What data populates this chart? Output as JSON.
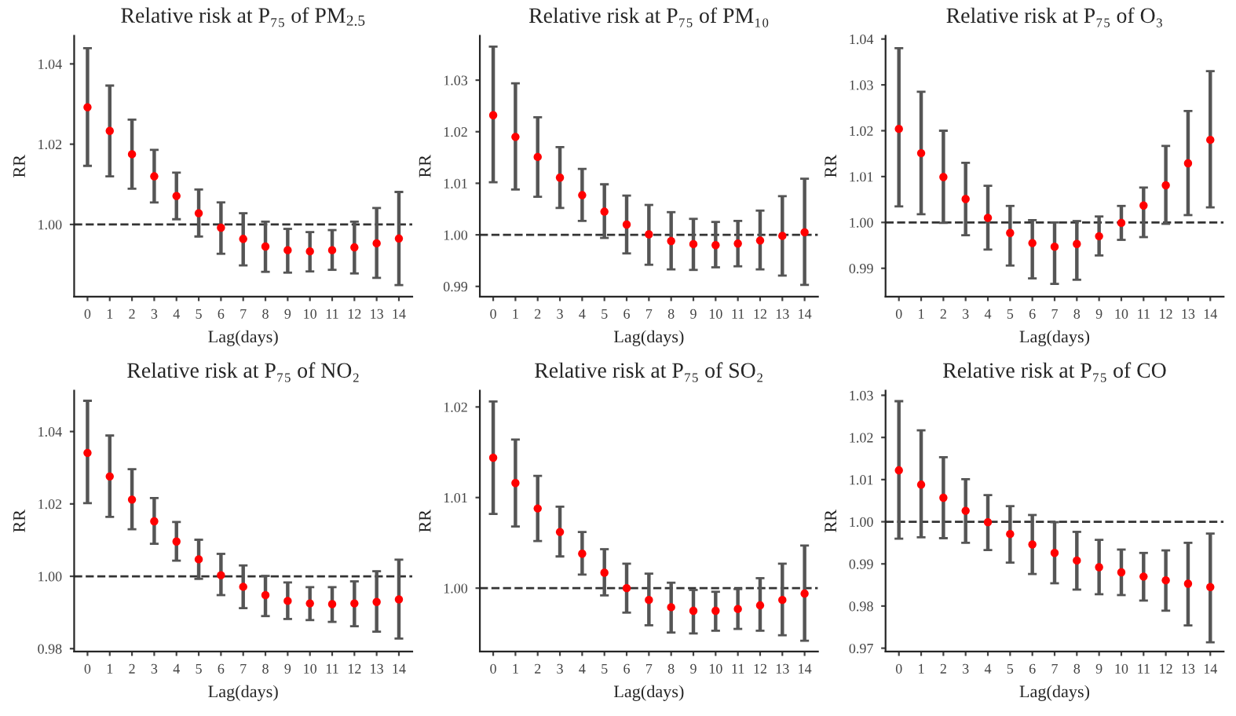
{
  "chart_data": [
    {
      "type": "scatter",
      "title": "Relative risk at P₇₅ of PM$_{2.5}$",
      "xlabel": "Lag(days)",
      "ylabel": "RR",
      "categories": [
        "0",
        "1",
        "2",
        "3",
        "4",
        "5",
        "6",
        "7",
        "8",
        "9",
        "10",
        "11",
        "12",
        "13",
        "14"
      ],
      "color": "#ff0000",
      "marker": "circle",
      "grid": false,
      "values": [
        1.0292,
        1.0233,
        1.0175,
        1.012,
        1.0071,
        1.0028,
        0.9992,
        0.9964,
        0.9945,
        0.9936,
        0.9933,
        0.9936,
        0.9943,
        0.9953,
        0.9965
      ],
      "errors": [
        [
          1.0146,
          1.0439
        ],
        [
          1.012,
          1.0346
        ],
        [
          1.0089,
          1.0261
        ],
        [
          1.0055,
          1.0186
        ],
        [
          1.0013,
          1.0129
        ],
        [
          0.997,
          1.0087
        ],
        [
          0.9927,
          1.0055
        ],
        [
          0.9898,
          1.0028
        ],
        [
          0.9882,
          1.0007
        ],
        [
          0.988,
          0.9989
        ],
        [
          0.9883,
          0.9981
        ],
        [
          0.9887,
          0.9986
        ],
        [
          0.9878,
          1.0007
        ],
        [
          0.9867,
          1.0041
        ],
        [
          0.9849,
          1.0081
        ]
      ],
      "ylim": [
        0.982,
        1.047
      ],
      "yticks": [
        {
          "value": 1.0,
          "label": "1.00"
        },
        {
          "value": 1.02,
          "label": "1.02"
        },
        {
          "value": 1.04,
          "label": "1.04"
        }
      ],
      "ref_lines": [
        {
          "axis": "y",
          "value": 1.0,
          "color": "#333333",
          "line_style": "dashed"
        }
      ]
    },
    {
      "type": "scatter",
      "title": "Relative risk at P₇₅ of PM₁₀",
      "xlabel": "Lag(days)",
      "ylabel": "RR",
      "categories": [
        "0",
        "1",
        "2",
        "3",
        "4",
        "5",
        "6",
        "7",
        "8",
        "9",
        "10",
        "11",
        "12",
        "13",
        "14"
      ],
      "color": "#ff0000",
      "marker": "circle",
      "grid": false,
      "values": [
        1.0232,
        1.019,
        1.0151,
        1.0111,
        1.0077,
        1.0045,
        1.002,
        1.0001,
        0.9988,
        0.9982,
        0.998,
        0.9983,
        0.9989,
        0.9998,
        1.0005
      ],
      "errors": [
        [
          1.0102,
          1.0365
        ],
        [
          1.0088,
          1.0294
        ],
        [
          1.0074,
          1.0228
        ],
        [
          1.0052,
          1.017
        ],
        [
          1.0027,
          1.0128
        ],
        [
          0.9994,
          1.0098
        ],
        [
          0.9964,
          1.0076
        ],
        [
          0.9942,
          1.0058
        ],
        [
          0.9933,
          1.0044
        ],
        [
          0.9932,
          1.0031
        ],
        [
          0.9937,
          1.0025
        ],
        [
          0.9939,
          1.0027
        ],
        [
          0.9933,
          1.0047
        ],
        [
          0.9921,
          1.0075
        ],
        [
          0.9903,
          1.0109
        ]
      ],
      "ylim": [
        0.988,
        1.0386
      ],
      "yticks": [
        {
          "value": 0.99,
          "label": "0.99"
        },
        {
          "value": 1.0,
          "label": "1.00"
        },
        {
          "value": 1.01,
          "label": "1.01"
        },
        {
          "value": 1.02,
          "label": "1.02"
        },
        {
          "value": 1.03,
          "label": "1.03"
        }
      ],
      "ref_lines": [
        {
          "axis": "y",
          "value": 1.0,
          "color": "#333333",
          "line_style": "dashed"
        }
      ]
    },
    {
      "type": "scatter",
      "title": "Relative risk at P₇₅ of O₃",
      "xlabel": "Lag(days)",
      "ylabel": "RR",
      "categories": [
        "0",
        "1",
        "2",
        "3",
        "4",
        "5",
        "6",
        "7",
        "8",
        "9",
        "10",
        "11",
        "12",
        "13",
        "14"
      ],
      "color": "#ff0000",
      "marker": "circle",
      "grid": false,
      "values": [
        1.0204,
        1.0151,
        1.0099,
        1.0051,
        1.001,
        0.9977,
        0.9955,
        0.9947,
        0.9953,
        0.997,
        0.9999,
        1.0037,
        1.0081,
        1.0129,
        1.018
      ],
      "errors": [
        [
          1.0035,
          1.038
        ],
        [
          1.0018,
          1.0285
        ],
        [
          0.9999,
          1.02
        ],
        [
          0.9972,
          1.013
        ],
        [
          0.9941,
          1.008
        ],
        [
          0.9906,
          1.0036
        ],
        [
          0.9878,
          1.0005
        ],
        [
          0.9866,
          1.0
        ],
        [
          0.9875,
          1.0003
        ],
        [
          0.9928,
          1.0013
        ],
        [
          0.9962,
          1.0036
        ],
        [
          0.9968,
          1.0076
        ],
        [
          0.9997,
          1.0167
        ],
        [
          1.0016,
          1.0243
        ],
        [
          1.0033,
          1.033
        ]
      ],
      "ylim": [
        0.9838,
        1.0407
      ],
      "yticks": [
        {
          "value": 0.99,
          "label": "0.99"
        },
        {
          "value": 1.0,
          "label": "1.00"
        },
        {
          "value": 1.01,
          "label": "1.01"
        },
        {
          "value": 1.02,
          "label": "1.02"
        },
        {
          "value": 1.03,
          "label": "1.03"
        },
        {
          "value": 1.04,
          "label": "1.04"
        }
      ],
      "ref_lines": [
        {
          "axis": "y",
          "value": 1.0,
          "color": "#333333",
          "line_style": "dashed"
        }
      ]
    },
    {
      "type": "scatter",
      "title": "Relative risk at P₇₅ of NO₂",
      "xlabel": "Lag(days)",
      "ylabel": "RR",
      "categories": [
        "0",
        "1",
        "2",
        "3",
        "4",
        "5",
        "6",
        "7",
        "8",
        "9",
        "10",
        "11",
        "12",
        "13",
        "14"
      ],
      "color": "#ff0000",
      "marker": "circle",
      "grid": false,
      "values": [
        1.0341,
        1.0276,
        1.0212,
        1.0152,
        1.0096,
        1.0047,
        1.0003,
        0.9971,
        0.9948,
        0.9932,
        0.9925,
        0.9923,
        0.9925,
        0.9929,
        0.9936
      ],
      "errors": [
        [
          1.0202,
          1.0485
        ],
        [
          1.0164,
          1.0389
        ],
        [
          1.013,
          1.0296
        ],
        [
          1.009,
          1.0216
        ],
        [
          1.0043,
          1.015
        ],
        [
          0.9993,
          1.0101
        ],
        [
          0.9948,
          1.0062
        ],
        [
          0.9912,
          1.003
        ],
        [
          0.989,
          1.0001
        ],
        [
          0.9882,
          0.9983
        ],
        [
          0.9879,
          0.997
        ],
        [
          0.9874,
          0.997
        ],
        [
          0.9862,
          0.9986
        ],
        [
          0.9847,
          1.0014
        ],
        [
          0.9828,
          1.0046
        ]
      ],
      "ylim": [
        0.9792,
        1.0513
      ],
      "yticks": [
        {
          "value": 0.98,
          "label": "0.98"
        },
        {
          "value": 1.0,
          "label": "1.00"
        },
        {
          "value": 1.02,
          "label": "1.02"
        },
        {
          "value": 1.04,
          "label": "1.04"
        }
      ],
      "ref_lines": [
        {
          "axis": "y",
          "value": 1.0,
          "color": "#333333",
          "line_style": "dashed"
        }
      ]
    },
    {
      "type": "scatter",
      "title": "Relative risk at P₇₅ of SO₂",
      "xlabel": "Lag(days)",
      "ylabel": "RR",
      "categories": [
        "0",
        "1",
        "2",
        "3",
        "4",
        "5",
        "6",
        "7",
        "8",
        "9",
        "10",
        "11",
        "12",
        "13",
        "14"
      ],
      "color": "#ff0000",
      "marker": "circle",
      "grid": false,
      "values": [
        1.0144,
        1.0116,
        1.0088,
        1.0062,
        1.0038,
        1.0017,
        1.0,
        0.9987,
        0.9979,
        0.9975,
        0.9975,
        0.9977,
        0.9981,
        0.9987,
        0.9994
      ],
      "errors": [
        [
          1.0082,
          1.0206
        ],
        [
          1.0068,
          1.0164
        ],
        [
          1.0052,
          1.0124
        ],
        [
          1.0035,
          1.009
        ],
        [
          1.0015,
          1.0062
        ],
        [
          0.9992,
          1.0043
        ],
        [
          0.9973,
          1.0027
        ],
        [
          0.9959,
          1.0016
        ],
        [
          0.9951,
          1.0006
        ],
        [
          0.995,
          0.9998
        ],
        [
          0.9953,
          0.9996
        ],
        [
          0.9955,
          0.9999
        ],
        [
          0.9953,
          1.0011
        ],
        [
          0.9948,
          1.0027
        ],
        [
          0.9942,
          1.0047
        ]
      ],
      "ylim": [
        0.993,
        1.0218
      ],
      "yticks": [
        {
          "value": 1.0,
          "label": "1.00"
        },
        {
          "value": 1.01,
          "label": "1.01"
        },
        {
          "value": 1.02,
          "label": "1.02"
        }
      ],
      "ref_lines": [
        {
          "axis": "y",
          "value": 1.0,
          "color": "#333333",
          "line_style": "dashed"
        }
      ]
    },
    {
      "type": "scatter",
      "title": "Relative risk at P₇₅ of CO",
      "xlabel": "Lag(days)",
      "ylabel": "RR",
      "categories": [
        "0",
        "1",
        "2",
        "3",
        "4",
        "5",
        "6",
        "7",
        "8",
        "9",
        "10",
        "11",
        "12",
        "13",
        "14"
      ],
      "color": "#ff0000",
      "marker": "circle",
      "grid": false,
      "values": [
        1.0122,
        1.0088,
        1.0057,
        1.0026,
        0.9999,
        0.9971,
        0.9946,
        0.9926,
        0.9908,
        0.9892,
        0.988,
        0.987,
        0.9861,
        0.9853,
        0.9845
      ],
      "errors": [
        [
          0.996,
          1.0286
        ],
        [
          0.9963,
          1.0217
        ],
        [
          0.9961,
          1.0153
        ],
        [
          0.995,
          1.0101
        ],
        [
          0.9933,
          1.0063
        ],
        [
          0.9903,
          1.0037
        ],
        [
          0.9876,
          1.0016
        ],
        [
          0.9854,
          0.9999
        ],
        [
          0.9839,
          0.9976
        ],
        [
          0.9828,
          0.9957
        ],
        [
          0.9826,
          0.9934
        ],
        [
          0.9813,
          0.9926
        ],
        [
          0.9789,
          0.9932
        ],
        [
          0.9754,
          0.995
        ],
        [
          0.9714,
          0.9972
        ]
      ],
      "ylim": [
        0.9692,
        1.0311
      ],
      "yticks": [
        {
          "value": 0.97,
          "label": "0.97"
        },
        {
          "value": 0.98,
          "label": "0.98"
        },
        {
          "value": 0.99,
          "label": "0.99"
        },
        {
          "value": 1.0,
          "label": "1.00"
        },
        {
          "value": 1.01,
          "label": "1.01"
        },
        {
          "value": 1.02,
          "label": "1.02"
        },
        {
          "value": 1.03,
          "label": "1.03"
        }
      ],
      "ref_lines": [
        {
          "axis": "y",
          "value": 1.0,
          "color": "#333333",
          "line_style": "dashed"
        }
      ]
    }
  ]
}
